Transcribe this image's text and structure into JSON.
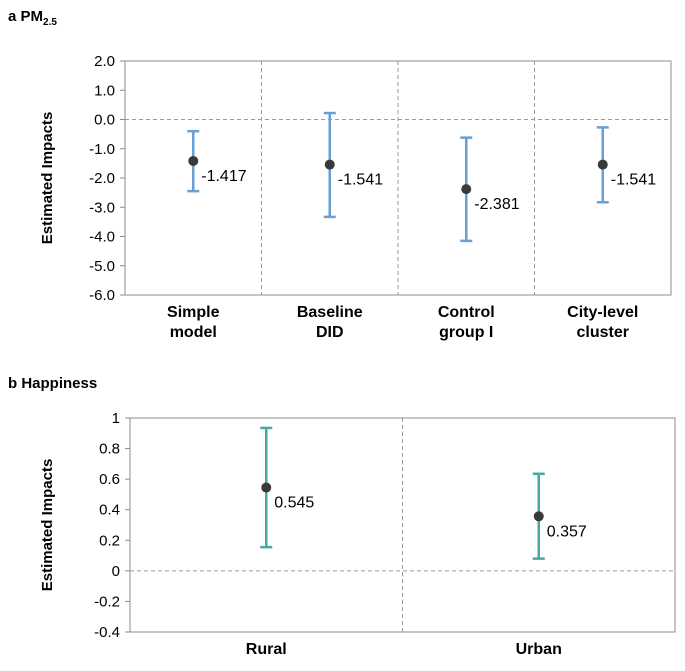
{
  "chart_data": [
    {
      "panel_label": "a",
      "title_main": "PM",
      "title_sub": "2.5",
      "type": "errorbar",
      "ylabel": "Estimated Impacts",
      "ylim": [
        -6.0,
        2.0
      ],
      "yticks": [
        "2.0",
        "1.0",
        "0.0",
        "-1.0",
        "-2.0",
        "-3.0",
        "-4.0",
        "-5.0",
        "-6.0"
      ],
      "categories": [
        [
          "Simple",
          "model"
        ],
        [
          "Baseline",
          "DID"
        ],
        [
          "Control",
          "group I"
        ],
        [
          "City-level",
          "cluster"
        ]
      ],
      "values": [
        -1.417,
        -1.541,
        -2.381,
        -1.541
      ],
      "labels": [
        "-1.417",
        "-1.541",
        "-2.381",
        "-1.541"
      ],
      "lower": [
        -2.45,
        -3.33,
        -4.15,
        -2.83
      ],
      "upper": [
        -0.4,
        0.22,
        -0.62,
        -0.27
      ],
      "errorbar_color": "#6a9fd4",
      "point_color": "#3a3a3a",
      "zero_line": true
    },
    {
      "panel_label": "b",
      "title_main": "Happiness",
      "title_sub": "",
      "type": "errorbar",
      "ylabel": "Estimated Impacts",
      "ylim": [
        -0.4,
        1.0
      ],
      "yticks": [
        "1",
        "0.8",
        "0.6",
        "0.4",
        "0.2",
        "0",
        "-0.2",
        "-0.4"
      ],
      "categories": [
        [
          "Rural"
        ],
        [
          "Urban"
        ]
      ],
      "values": [
        0.545,
        0.357
      ],
      "labels": [
        "0.545",
        "0.357"
      ],
      "lower": [
        0.155,
        0.08
      ],
      "upper": [
        0.935,
        0.635
      ],
      "errorbar_color": "#45a9a1",
      "point_color": "#3a3a3a",
      "zero_line": true
    }
  ]
}
